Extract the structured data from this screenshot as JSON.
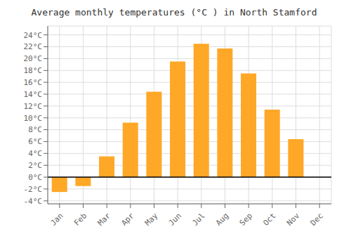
{
  "chart_data": {
    "type": "bar",
    "title": "Average monthly temperatures (°C ) in North Stamford",
    "categories": [
      "Jan",
      "Feb",
      "Mar",
      "Apr",
      "May",
      "Jun",
      "Jul",
      "Aug",
      "Sep",
      "Oct",
      "Nov",
      "Dec"
    ],
    "values": [
      -2.5,
      -1.5,
      3.5,
      9.2,
      14.4,
      19.5,
      22.5,
      21.7,
      17.5,
      11.4,
      6.4,
      0.0
    ],
    "color": "#FFA726",
    "ylim": [
      -4.5,
      25.5
    ],
    "yticks": [
      {
        "value": -4,
        "label": "-4°C"
      },
      {
        "value": -2,
        "label": "-2°C"
      },
      {
        "value": 0,
        "label": "0°C"
      },
      {
        "value": 2,
        "label": "2°C"
      },
      {
        "value": 4,
        "label": "4°C"
      },
      {
        "value": 6,
        "label": "6°C"
      },
      {
        "value": 8,
        "label": "8°C"
      },
      {
        "value": 10,
        "label": "10°C"
      },
      {
        "value": 12,
        "label": "12°C"
      },
      {
        "value": 14,
        "label": "14°C"
      },
      {
        "value": 16,
        "label": "16°C"
      },
      {
        "value": 18,
        "label": "18°C"
      },
      {
        "value": 20,
        "label": "20°C"
      },
      {
        "value": 22,
        "label": "22°C"
      },
      {
        "value": 24,
        "label": "24°C"
      }
    ],
    "grid": true
  }
}
